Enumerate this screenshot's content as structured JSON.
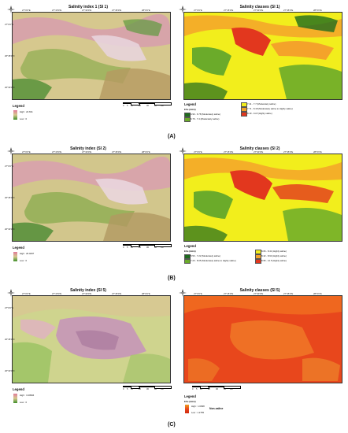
{
  "colors": {
    "class_dark_green": "#1e6b1e",
    "class_light_green": "#6bab2a",
    "class_yellow": "#f2ee1c",
    "class_orange": "#f4a32a",
    "class_red": "#e2371e",
    "si_high": "#e07a9a",
    "si_low": "#3f8f2a"
  },
  "lon_ticks": [
    "27°0'0\"E",
    "27°15'0\"E",
    "27°30'0\"E",
    "27°45'0\"E",
    "28°0'0\"E"
  ],
  "lat_ticks": [
    "27°0'0\"N",
    "26°45'0\"N",
    "26°30'0\"N"
  ],
  "scale_labels": [
    "0",
    "5",
    "10",
    "20",
    "30",
    "40"
  ],
  "scale_unit": "Km",
  "north_label": "N",
  "rows": [
    {
      "caption": "(A)",
      "left": {
        "title": "Salinity index 1 (SI 1)",
        "legend_title": "Legend",
        "high": "High : 24.631",
        "low": "Low : 0"
      },
      "right": {
        "title": "Salinity classes (SI 1)",
        "legend_title": "Legend",
        "unit": "ECe (ds/m)",
        "classes": [
          {
            "label": "4.90 - 6.78 (Moderately saline)",
            "color": "#1e6b1e"
          },
          {
            "label": "6.79 - 7.4 (Moderately saline)",
            "color": "#6bab2a"
          },
          {
            "label": "7.41 - 7.7 (Moderately saline)",
            "color": "#f2ee1c"
          },
          {
            "label": "7.71 - 8.18 (Moderately saline to Highly saline)",
            "color": "#f4a32a"
          },
          {
            "label": "8.19 - 11.8 (Highly saline)",
            "color": "#e2371e"
          }
        ]
      }
    },
    {
      "caption": "(B)",
      "left": {
        "title": "Salinity index (SI 2)",
        "legend_title": "Legend",
        "high": "High : 26.0297",
        "low": "Low : 0"
      },
      "right": {
        "title": "Salinity classes (SI 2)",
        "legend_title": "Legend",
        "unit": "ECe (ds/m)",
        "classes": [
          {
            "label": "5.53 - 7.22 (Moderately saline)",
            "color": "#1e6b1e"
          },
          {
            "label": "7.23 - 8.05 (Moderately saline to Highly saline)",
            "color": "#6bab2a"
          },
          {
            "label": "8.06 - 8.41 (Highly saline)",
            "color": "#f2ee1c"
          },
          {
            "label": "8.42 - 8.94 (Highly saline)",
            "color": "#f4a32a"
          },
          {
            "label": "8.95 - 12.5 (Highly saline)",
            "color": "#e2371e"
          }
        ]
      }
    },
    {
      "caption": "(C)",
      "left": {
        "title": "Salinity index (SI 5)",
        "legend_title": "Legend",
        "high": "High : 3.40994",
        "low": "Low : 0"
      },
      "right": {
        "title": "Salinity classes (SI 5)",
        "legend_title": "Legend",
        "unit": "ECe (ds/m)",
        "high": "High : 1.6098",
        "low": "Low : 1.2755",
        "class_label": "Non-saline"
      }
    }
  ]
}
